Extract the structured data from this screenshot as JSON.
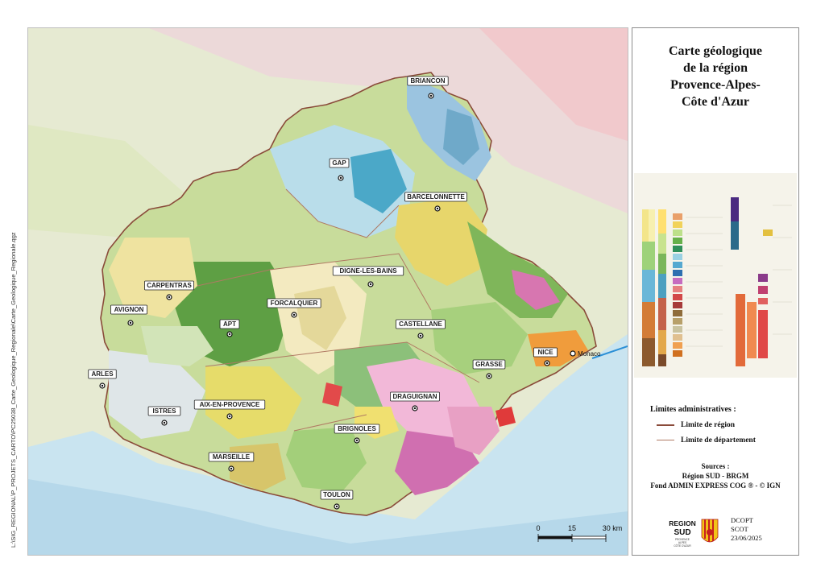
{
  "title": "Carte géologique de la région Provence-Alpes-Côte d'Azur",
  "title_lines": [
    "Carte géologique",
    "de la région",
    "Provence-Alpes-",
    "Côte d'Azur"
  ],
  "side_path": "L:\\SIG_REGIONAL\\P_PROJETS_CARTO\\PC25038_Carte_Geologique_Regionale\\Carte_Geologique_Regionale.qgz",
  "cities": [
    {
      "name": "BRIANCON"
    },
    {
      "name": "GAP"
    },
    {
      "name": "BARCELONNETTE"
    },
    {
      "name": "CARPENTRAS"
    },
    {
      "name": "DIGNE-LES-BAINS"
    },
    {
      "name": "AVIGNON"
    },
    {
      "name": "FORCALQUIER"
    },
    {
      "name": "APT"
    },
    {
      "name": "CASTELLANE"
    },
    {
      "name": "NICE"
    },
    {
      "name": "Monaco"
    },
    {
      "name": "ARLES"
    },
    {
      "name": "GRASSE"
    },
    {
      "name": "DRAGUIGNAN"
    },
    {
      "name": "AIX-EN-PROVENCE"
    },
    {
      "name": "ISTRES"
    },
    {
      "name": "BRIGNOLES"
    },
    {
      "name": "MARSEILLE"
    },
    {
      "name": "TOULON"
    }
  ],
  "legend": {
    "heading": "Limites administratives :",
    "items": [
      {
        "label": "Limite de région",
        "color": "#8a4b3a"
      },
      {
        "label": "Limite de département",
        "color": "#b07a63"
      }
    ]
  },
  "sources": {
    "heading": "Sources :",
    "lines": [
      "Région SUD - BRGM",
      "Fond ADMIN EXPRESS COG ® - © IGN"
    ]
  },
  "org": {
    "lines": [
      "DCOPT",
      "SCOT",
      "23/06/2025"
    ]
  },
  "logo": {
    "text_main": "REGION SUD",
    "text_sub": "PROVENCE ALPES CÔTE D'AZUR"
  },
  "scale": {
    "labels": [
      "0",
      "15",
      "30 km"
    ]
  },
  "colors": {
    "region_border": "#8a4b3a",
    "sea": "#c9e4f0",
    "outside": "#e8ecd6"
  }
}
